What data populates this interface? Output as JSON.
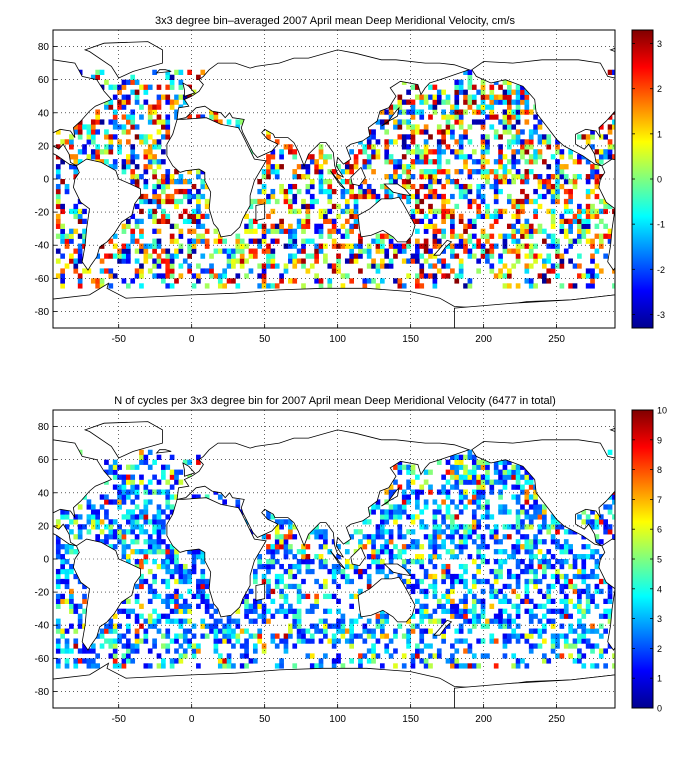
{
  "chart_data": [
    {
      "type": "heatmap",
      "title": "3x3 degree bin–averaged 2007 April mean Deep Meridional Velocity, cm/s",
      "x_ticks": [
        -50,
        0,
        50,
        100,
        150,
        200,
        250
      ],
      "y_ticks": [
        80,
        60,
        40,
        20,
        0,
        -20,
        -40,
        -60,
        -80
      ],
      "xlim": [
        -95,
        290
      ],
      "ylim": [
        -90,
        90
      ],
      "bin_size_deg": 3,
      "colorbar": {
        "ticks": [
          3,
          2,
          1,
          0,
          -1,
          -2,
          -3
        ],
        "range": [
          -3.3,
          3.3
        ],
        "colormap": "jet"
      },
      "grid": "dotted"
    },
    {
      "type": "heatmap",
      "title": "N of cycles per 3x3 degree bin for 2007 April mean Deep Meridional Velocity (6477 in total)",
      "x_ticks": [
        -50,
        0,
        50,
        100,
        150,
        200,
        250
      ],
      "y_ticks": [
        80,
        60,
        40,
        20,
        0,
        -20,
        -40,
        -60,
        -80
      ],
      "xlim": [
        -95,
        290
      ],
      "ylim": [
        -90,
        90
      ],
      "bin_size_deg": 3,
      "colorbar": {
        "ticks": [
          10,
          9,
          8,
          7,
          6,
          5,
          4,
          3,
          2,
          1,
          0
        ],
        "range": [
          0,
          10
        ],
        "colormap": "jet"
      },
      "grid": "dotted"
    }
  ]
}
